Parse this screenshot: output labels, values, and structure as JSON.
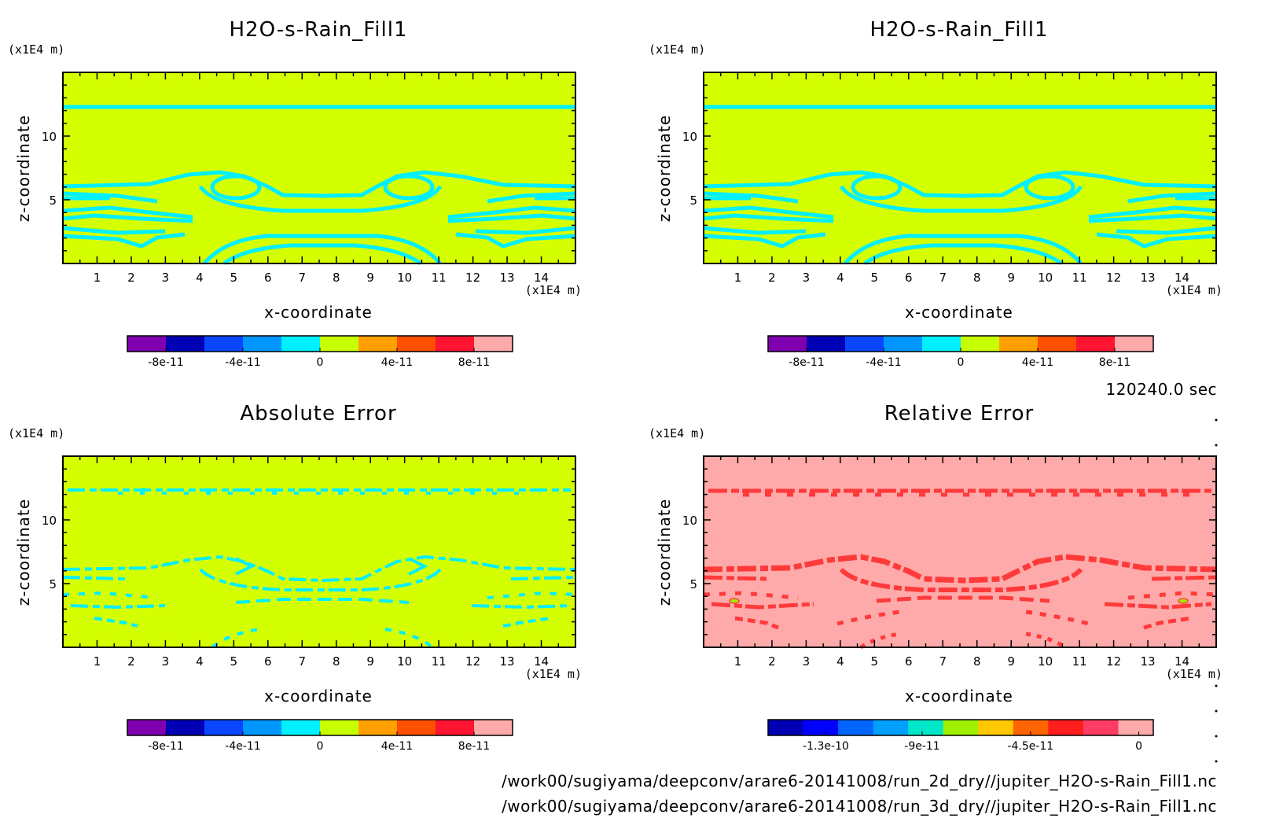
{
  "chart_data": [
    {
      "type": "heatmap",
      "title": "H2O-s-Rain_Fill1",
      "xlabel": "x-coordinate",
      "ylabel": "z-coordinate",
      "x_unit": "(x1E4 m)",
      "y_unit": "(x1E4 m)",
      "xlim": [
        0,
        15
      ],
      "ylim": [
        0,
        15
      ],
      "xticks": [
        1,
        2,
        3,
        4,
        5,
        6,
        7,
        8,
        9,
        10,
        11,
        12,
        13,
        14
      ],
      "yticks": [
        5,
        10
      ],
      "background_color": "#d4ff00",
      "contour_color": "#00f0ff",
      "colorbar": {
        "colors": [
          "#8000b0",
          "#0000b4",
          "#0a46ff",
          "#0096ff",
          "#00f0ff",
          "#c8ff00",
          "#ffa000",
          "#ff5000",
          "#ff1432",
          "#ffaaaa"
        ],
        "tick_labels": [
          "-8e-11",
          "-4e-11",
          "0",
          "4e-11",
          "8e-11"
        ],
        "tick_values": [
          -8e-11,
          -4e-11,
          0,
          4e-11,
          8e-11
        ],
        "range": [
          -1e-10,
          1e-10
        ]
      }
    },
    {
      "type": "heatmap",
      "title": "H2O-s-Rain_Fill1",
      "xlabel": "x-coordinate",
      "ylabel": "z-coordinate",
      "x_unit": "(x1E4 m)",
      "y_unit": "(x1E4 m)",
      "xlim": [
        0,
        15
      ],
      "ylim": [
        0,
        15
      ],
      "xticks": [
        1,
        2,
        3,
        4,
        5,
        6,
        7,
        8,
        9,
        10,
        11,
        12,
        13,
        14
      ],
      "yticks": [
        5,
        10
      ],
      "background_color": "#d4ff00",
      "contour_color": "#00f0ff",
      "colorbar": {
        "colors": [
          "#8000b0",
          "#0000b4",
          "#0a46ff",
          "#0096ff",
          "#00f0ff",
          "#c8ff00",
          "#ffa000",
          "#ff5000",
          "#ff1432",
          "#ffaaaa"
        ],
        "tick_labels": [
          "-8e-11",
          "-4e-11",
          "0",
          "4e-11",
          "8e-11"
        ],
        "tick_values": [
          -8e-11,
          -4e-11,
          0,
          4e-11,
          8e-11
        ],
        "range": [
          -1e-10,
          1e-10
        ]
      }
    },
    {
      "type": "heatmap",
      "title": "Absolute Error",
      "xlabel": "x-coordinate",
      "ylabel": "z-coordinate",
      "x_unit": "(x1E4 m)",
      "y_unit": "(x1E4 m)",
      "xlim": [
        0,
        15
      ],
      "ylim": [
        0,
        15
      ],
      "xticks": [
        1,
        2,
        3,
        4,
        5,
        6,
        7,
        8,
        9,
        10,
        11,
        12,
        13,
        14
      ],
      "yticks": [
        5,
        10
      ],
      "background_color": "#d4ff00",
      "contour_color": "#00f0ff",
      "colorbar": {
        "colors": [
          "#8000b0",
          "#0000b4",
          "#0a46ff",
          "#0096ff",
          "#00f0ff",
          "#c8ff00",
          "#ffa000",
          "#ff5000",
          "#ff1432",
          "#ffaaaa"
        ],
        "tick_labels": [
          "-8e-11",
          "-4e-11",
          "0",
          "4e-11",
          "8e-11"
        ],
        "tick_values": [
          -8e-11,
          -4e-11,
          0,
          4e-11,
          8e-11
        ],
        "range": [
          -1e-10,
          1e-10
        ]
      }
    },
    {
      "type": "heatmap",
      "title": "Relative Error",
      "xlabel": "x-coordinate",
      "ylabel": "z-coordinate",
      "x_unit": "(x1E4 m)",
      "y_unit": "(x1E4 m)",
      "xlim": [
        0,
        15
      ],
      "ylim": [
        0,
        15
      ],
      "xticks": [
        1,
        2,
        3,
        4,
        5,
        6,
        7,
        8,
        9,
        10,
        11,
        12,
        13,
        14
      ],
      "yticks": [
        5,
        10
      ],
      "background_color": "#ffaaaa",
      "contour_color": "#ff3a3a",
      "colorbar": {
        "colors": [
          "#0000b4",
          "#0000ff",
          "#0064ff",
          "#00a0ff",
          "#00e6c8",
          "#a0f000",
          "#ffc800",
          "#ff6400",
          "#ff1e1e",
          "#ff3c64",
          "#ffaaaa"
        ],
        "tick_labels": [
          "-1.3e-10",
          "-9e-11",
          "-4.5e-11",
          "0"
        ],
        "tick_values": [
          -1.3e-10,
          -9e-11,
          -4.5e-11,
          0
        ],
        "range": [
          -1.54e-10,
          6e-12
        ]
      }
    }
  ],
  "time_label": "120240.0 sec",
  "footer": {
    "line1": "/work00/sugiyama/deepconv/arare6-20141008/run_2d_dry//jupiter_H2O-s-Rain_Fill1.nc",
    "line2": "/work00/sugiyama/deepconv/arare6-20141008/run_3d_dry//jupiter_H2O-s-Rain_Fill1.nc"
  }
}
